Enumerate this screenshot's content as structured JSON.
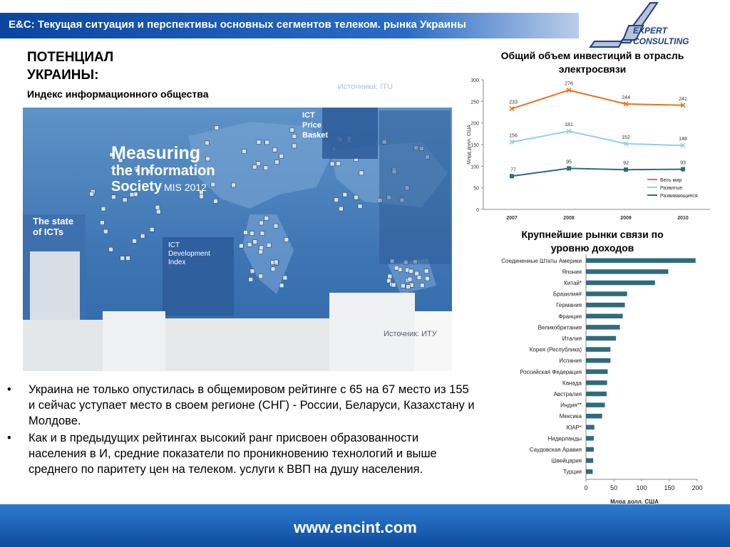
{
  "header": {
    "title": "E&C: Текущая ситуация и перспективы основных сегментов телеком.  рынка Украины",
    "logo_line1": "EXPERT",
    "logo_line2": "CONSULTING",
    "colors": {
      "bar_start": "#0a46a0",
      "bar_end": "#b9cdea"
    }
  },
  "left": {
    "heading_line1": "ПОТЕНЦИАЛ",
    "heading_line2": "УКРАИНЫ:",
    "subheading": "Индекс информационного общества",
    "source_top": "Источники: ITU",
    "source_bottom": "Источник: ИТУ",
    "map": {
      "title_line1": "Measuring",
      "title_line2": "the Information",
      "title_line3": "Society",
      "title_suffix": "MIS 2012",
      "state_line1": "The state",
      "state_line2": "of ICTs",
      "price_line1": "ICT",
      "price_line2": "Price",
      "price_line3": "Basket",
      "idi_line1": "ICT",
      "idi_line2": "Development",
      "idi_line3": "Index"
    }
  },
  "bullets": [
    "Украина не только опустилась в общемировом рейтинге с 65 на 67 место из 155 и сейчас уступает место в своем регионе (СНГ) - России, Беларуси, Казахстану и Молдове.",
    "Как и в предыдущих рейтингах высокий ранг присвоен образованности  населения в И, средние показатели по проникновению технологий и выше среднего по паритету цен на телеком. услуги к ВВП на душу населения."
  ],
  "footer": {
    "url": "www.encint.com"
  },
  "chart_titles": {
    "line_line1": "Общий объем инвестиций в отрасль",
    "line_line2": "электросвязи",
    "bar_line1": "Крупнейшие рынки связи по",
    "bar_line2": "уровню доходов"
  },
  "chart_data": [
    {
      "type": "line",
      "title": "Общий объем инвестиций в отрасль электросвязи",
      "x": [
        "2007",
        "2008",
        "2009",
        "2010"
      ],
      "ylabel": "Млрд долл. США",
      "ylim": [
        0,
        300
      ],
      "yticks": [
        "0",
        "50",
        "100",
        "150",
        "200",
        "250",
        "300"
      ],
      "grid": false,
      "legend": "right",
      "series": [
        {
          "name": "Весь мир",
          "values": [
            233,
            276,
            244,
            241
          ],
          "color": "#e8731c"
        },
        {
          "name": "Развитые",
          "values": [
            156,
            181,
            152,
            148
          ],
          "color": "#8fcfe6"
        },
        {
          "name": "Развивающиеся",
          "values": [
            77,
            95,
            92,
            93
          ],
          "color": "#2f6b7e"
        }
      ]
    },
    {
      "type": "bar",
      "orientation": "horizontal",
      "title": "Крупнейшие рынки связи по уровню доходов",
      "xlabel": "Млрд долл. США",
      "xlim": [
        0,
        200
      ],
      "xticks": [
        "0",
        "50",
        "100",
        "150",
        "200"
      ],
      "color": "#2f6b7e",
      "categories": [
        "Соединенные Штаты Америки",
        "Япония",
        "Китай*",
        "Бразилия#",
        "Германия",
        "Франция",
        "Великобритания",
        "Италия",
        "Корея (Республика)",
        "Испания",
        "Российская Федерация",
        "Канада",
        "Австралия",
        "Индия**",
        "Мексика",
        "ЮАР*",
        "Нидерланды",
        "Саудовская Аравия",
        "Швейцария",
        "Турция"
      ],
      "values": [
        197,
        148,
        124,
        74,
        70,
        66,
        61,
        54,
        44,
        44,
        39,
        38,
        37,
        34,
        29,
        15,
        14,
        14,
        13,
        12
      ]
    }
  ]
}
